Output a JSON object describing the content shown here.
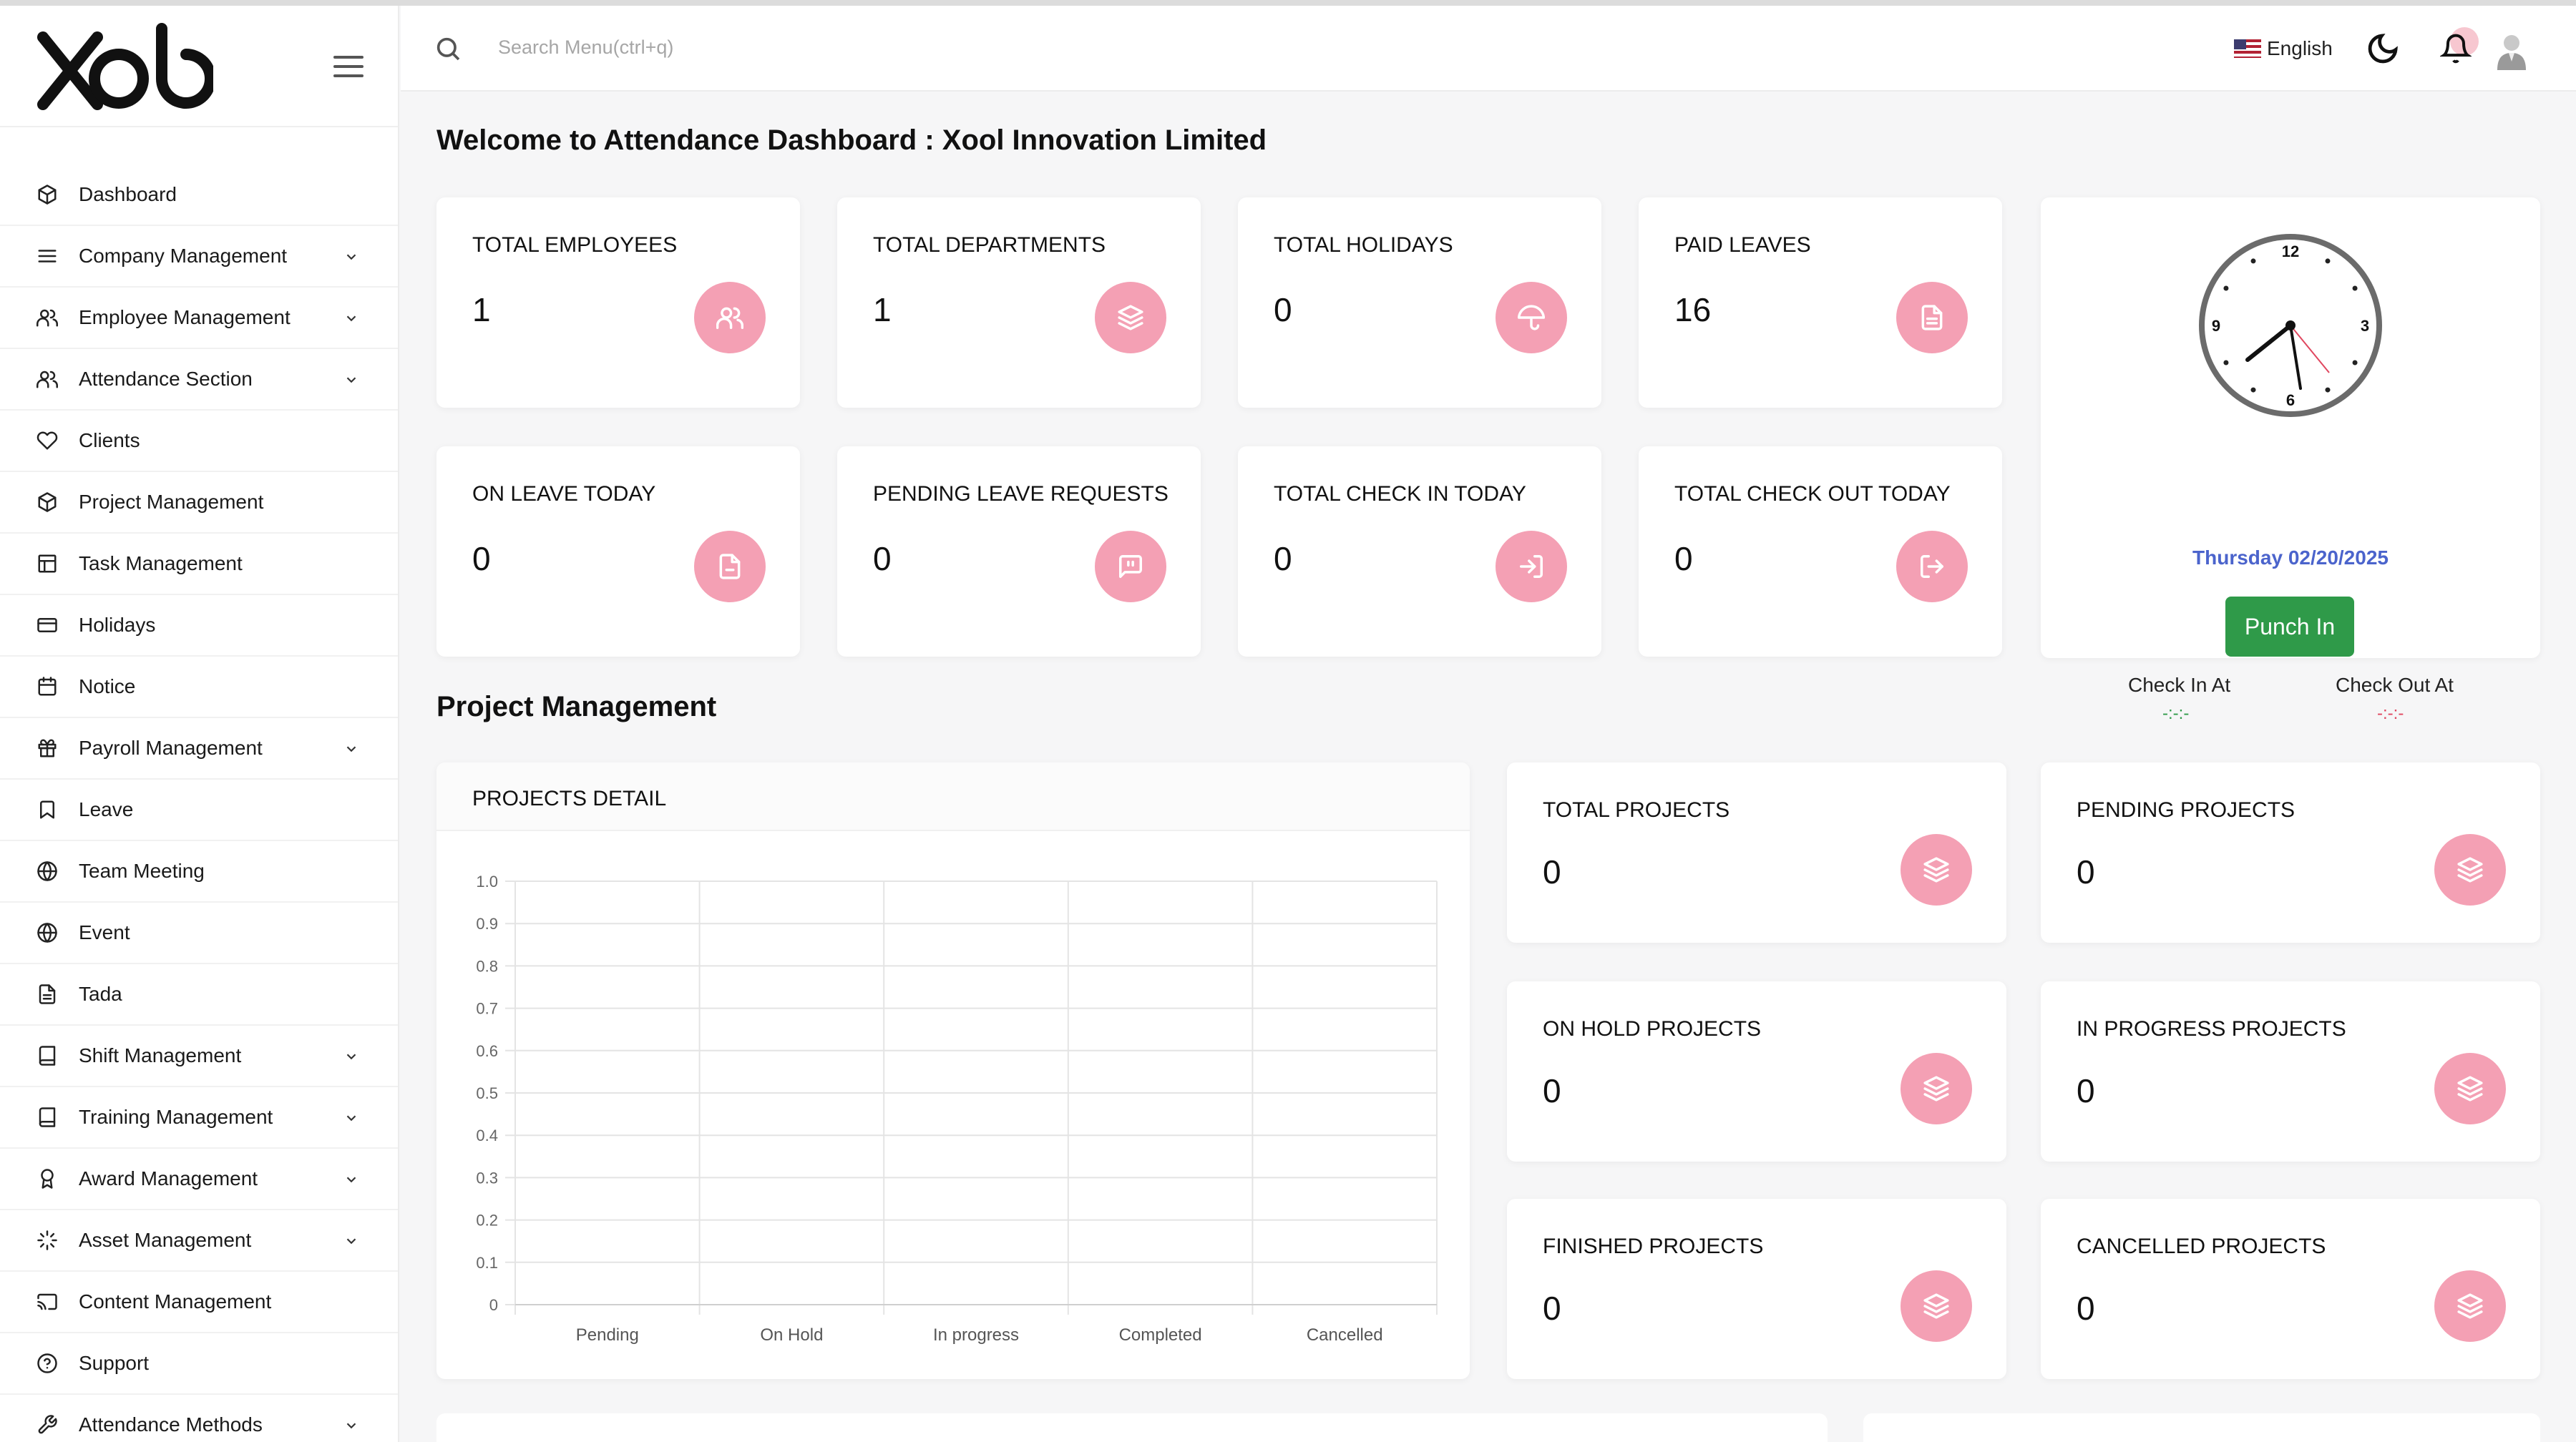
{
  "brand": {
    "logo_text": "XOL"
  },
  "sidebar": {
    "items": [
      {
        "label": "Dashboard",
        "icon": "cube-icon",
        "has_children": false
      },
      {
        "label": "Company Management",
        "icon": "list-icon",
        "has_children": true
      },
      {
        "label": "Employee Management",
        "icon": "users-icon",
        "has_children": true
      },
      {
        "label": "Attendance Section",
        "icon": "users-icon",
        "has_children": true
      },
      {
        "label": "Clients",
        "icon": "heart-icon",
        "has_children": false
      },
      {
        "label": "Project Management",
        "icon": "cube-icon",
        "has_children": false
      },
      {
        "label": "Task Management",
        "icon": "table-icon",
        "has_children": false
      },
      {
        "label": "Holidays",
        "icon": "credit-card-icon",
        "has_children": false
      },
      {
        "label": "Notice",
        "icon": "calendar-icon",
        "has_children": false
      },
      {
        "label": "Payroll Management",
        "icon": "gift-icon",
        "has_children": true
      },
      {
        "label": "Leave",
        "icon": "bookmark-icon",
        "has_children": false
      },
      {
        "label": "Team Meeting",
        "icon": "globe-icon",
        "has_children": false
      },
      {
        "label": "Event",
        "icon": "globe-icon",
        "has_children": false
      },
      {
        "label": "Tada",
        "icon": "file-text-icon",
        "has_children": false
      },
      {
        "label": "Shift Management",
        "icon": "book-icon",
        "has_children": true
      },
      {
        "label": "Training Management",
        "icon": "book-icon",
        "has_children": true
      },
      {
        "label": "Award Management",
        "icon": "award-icon",
        "has_children": true
      },
      {
        "label": "Asset Management",
        "icon": "loader-icon",
        "has_children": true
      },
      {
        "label": "Content Management",
        "icon": "cast-icon",
        "has_children": false
      },
      {
        "label": "Support",
        "icon": "help-circle-icon",
        "has_children": false
      },
      {
        "label": "Attendance Methods",
        "icon": "tool-icon",
        "has_children": true
      }
    ]
  },
  "header": {
    "search_placeholder": "Search Menu(ctrl+q)",
    "language": "English"
  },
  "page": {
    "title": "Welcome to Attendance Dashboard : Xool Innovation Limited"
  },
  "stats": [
    {
      "title": "TOTAL EMPLOYEES",
      "value": "1",
      "icon": "users-icon"
    },
    {
      "title": "TOTAL DEPARTMENTS",
      "value": "1",
      "icon": "layers-icon"
    },
    {
      "title": "TOTAL HOLIDAYS",
      "value": "0",
      "icon": "umbrella-icon"
    },
    {
      "title": "PAID LEAVES",
      "value": "16",
      "icon": "file-text-icon"
    },
    {
      "title": "ON LEAVE TODAY",
      "value": "0",
      "icon": "file-icon"
    },
    {
      "title": "PENDING LEAVE REQUESTS",
      "value": "0",
      "icon": "message-icon"
    },
    {
      "title": "TOTAL CHECK IN TODAY",
      "value": "0",
      "icon": "log-in-icon"
    },
    {
      "title": "TOTAL CHECK OUT TODAY",
      "value": "0",
      "icon": "log-out-icon"
    }
  ],
  "clock": {
    "date": "Thursday 02/20/2025",
    "punch_label": "Punch In",
    "check_in_label": "Check In At",
    "check_out_label": "Check Out At",
    "check_in_value": "-:-:-",
    "check_out_value": "-:-:-",
    "check_in_color": "#2f9a49",
    "check_out_color": "#e0475f",
    "numerals": [
      "12",
      "3",
      "6",
      "9"
    ]
  },
  "project_section": {
    "title": "Project Management",
    "chart_title": "PROJECTS DETAIL",
    "stats": [
      {
        "title": "TOTAL PROJECTS",
        "value": "0",
        "icon": "layers-icon"
      },
      {
        "title": "PENDING PROJECTS",
        "value": "0",
        "icon": "layers-icon"
      },
      {
        "title": "ON HOLD PROJECTS",
        "value": "0",
        "icon": "layers-icon"
      },
      {
        "title": "IN PROGRESS PROJECTS",
        "value": "0",
        "icon": "layers-icon"
      },
      {
        "title": "FINISHED PROJECTS",
        "value": "0",
        "icon": "layers-icon"
      },
      {
        "title": "CANCELLED PROJECTS",
        "value": "0",
        "icon": "layers-icon"
      }
    ]
  },
  "colors": {
    "accent_icon_bg": "#f4a0b4",
    "date_blue": "#4b64cc",
    "punch_green": "#2f9a49"
  },
  "chart_data": {
    "type": "bar",
    "title": "",
    "categories": [
      "Pending",
      "On Hold",
      "In progress",
      "Completed",
      "Cancelled"
    ],
    "values": [
      0,
      0,
      0,
      0,
      0
    ],
    "ylim": [
      0,
      1.0
    ],
    "yticks": [
      "0",
      "0.1",
      "0.2",
      "0.3",
      "0.4",
      "0.5",
      "0.6",
      "0.7",
      "0.8",
      "0.9",
      "1.0"
    ],
    "grid": true
  }
}
